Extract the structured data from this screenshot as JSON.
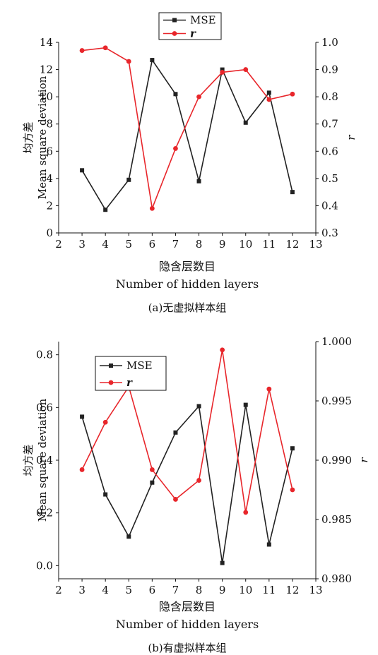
{
  "chart_data": [
    {
      "type": "line",
      "caption": "(a)无虚拟样本组",
      "xlabel_cn": "隐含层数目",
      "xlabel_en": "Number of hidden layers",
      "ylabel_cn": "均方差",
      "ylabel_en": "Mean square deviation",
      "y2label": "r",
      "xlim": [
        2,
        13
      ],
      "xticks": [
        2,
        3,
        4,
        5,
        6,
        7,
        8,
        9,
        10,
        11,
        12,
        13
      ],
      "ylim": [
        0,
        14
      ],
      "yticks": [
        "0",
        "2",
        "4",
        "6",
        "8",
        "10",
        "12",
        "14"
      ],
      "y2lim": [
        0.3,
        1.0
      ],
      "y2ticks": [
        "0.3",
        "0.4",
        "0.5",
        "0.6",
        "0.7",
        "0.8",
        "0.9",
        "1.0"
      ],
      "legend": {
        "position": "top-center",
        "entries": [
          "MSE",
          "r"
        ]
      },
      "x": [
        3,
        4,
        5,
        6,
        7,
        8,
        9,
        10,
        11,
        12
      ],
      "series": [
        {
          "name": "MSE",
          "axis": "left",
          "color": "#222222",
          "marker": "square",
          "values": [
            4.6,
            1.7,
            3.9,
            12.7,
            10.2,
            3.8,
            12.0,
            8.1,
            10.3,
            3.0
          ]
        },
        {
          "name": "r",
          "axis": "right",
          "color": "#e8262b",
          "marker": "circle",
          "values": [
            0.97,
            0.98,
            0.93,
            0.39,
            0.61,
            0.8,
            0.89,
            0.9,
            0.79,
            0.81
          ]
        }
      ]
    },
    {
      "type": "line",
      "caption": "(b)有虚拟样本组",
      "xlabel_cn": "隐含层数目",
      "xlabel_en": "Number of hidden layers",
      "ylabel_cn": "均方差",
      "ylabel_en": "Mean square deviation",
      "y2label": "r",
      "xlim": [
        2,
        13
      ],
      "xticks": [
        2,
        3,
        4,
        5,
        6,
        7,
        8,
        9,
        10,
        11,
        12,
        13
      ],
      "ylim": [
        -0.05,
        0.85
      ],
      "yticks": [
        "0.0",
        "0.2",
        "0.4",
        "0.6",
        "0.8"
      ],
      "y2lim": [
        0.98,
        1.0
      ],
      "y2ticks": [
        "0.980",
        "0.985",
        "0.990",
        "0.995",
        "1.000"
      ],
      "legend": {
        "position": "top-left",
        "entries": [
          "MSE",
          "r"
        ]
      },
      "x": [
        3,
        4,
        5,
        6,
        7,
        8,
        9,
        10,
        11,
        12
      ],
      "series": [
        {
          "name": "MSE",
          "axis": "left",
          "color": "#222222",
          "marker": "square",
          "values": [
            0.565,
            0.27,
            0.11,
            0.315,
            0.505,
            0.605,
            0.01,
            0.61,
            0.08,
            0.445
          ]
        },
        {
          "name": "r",
          "axis": "right",
          "color": "#e8262b",
          "marker": "circle",
          "values": [
            0.9892,
            0.9932,
            0.9962,
            0.9892,
            0.9867,
            0.9883,
            0.9993,
            0.9856,
            0.996,
            0.9875
          ]
        }
      ]
    }
  ]
}
